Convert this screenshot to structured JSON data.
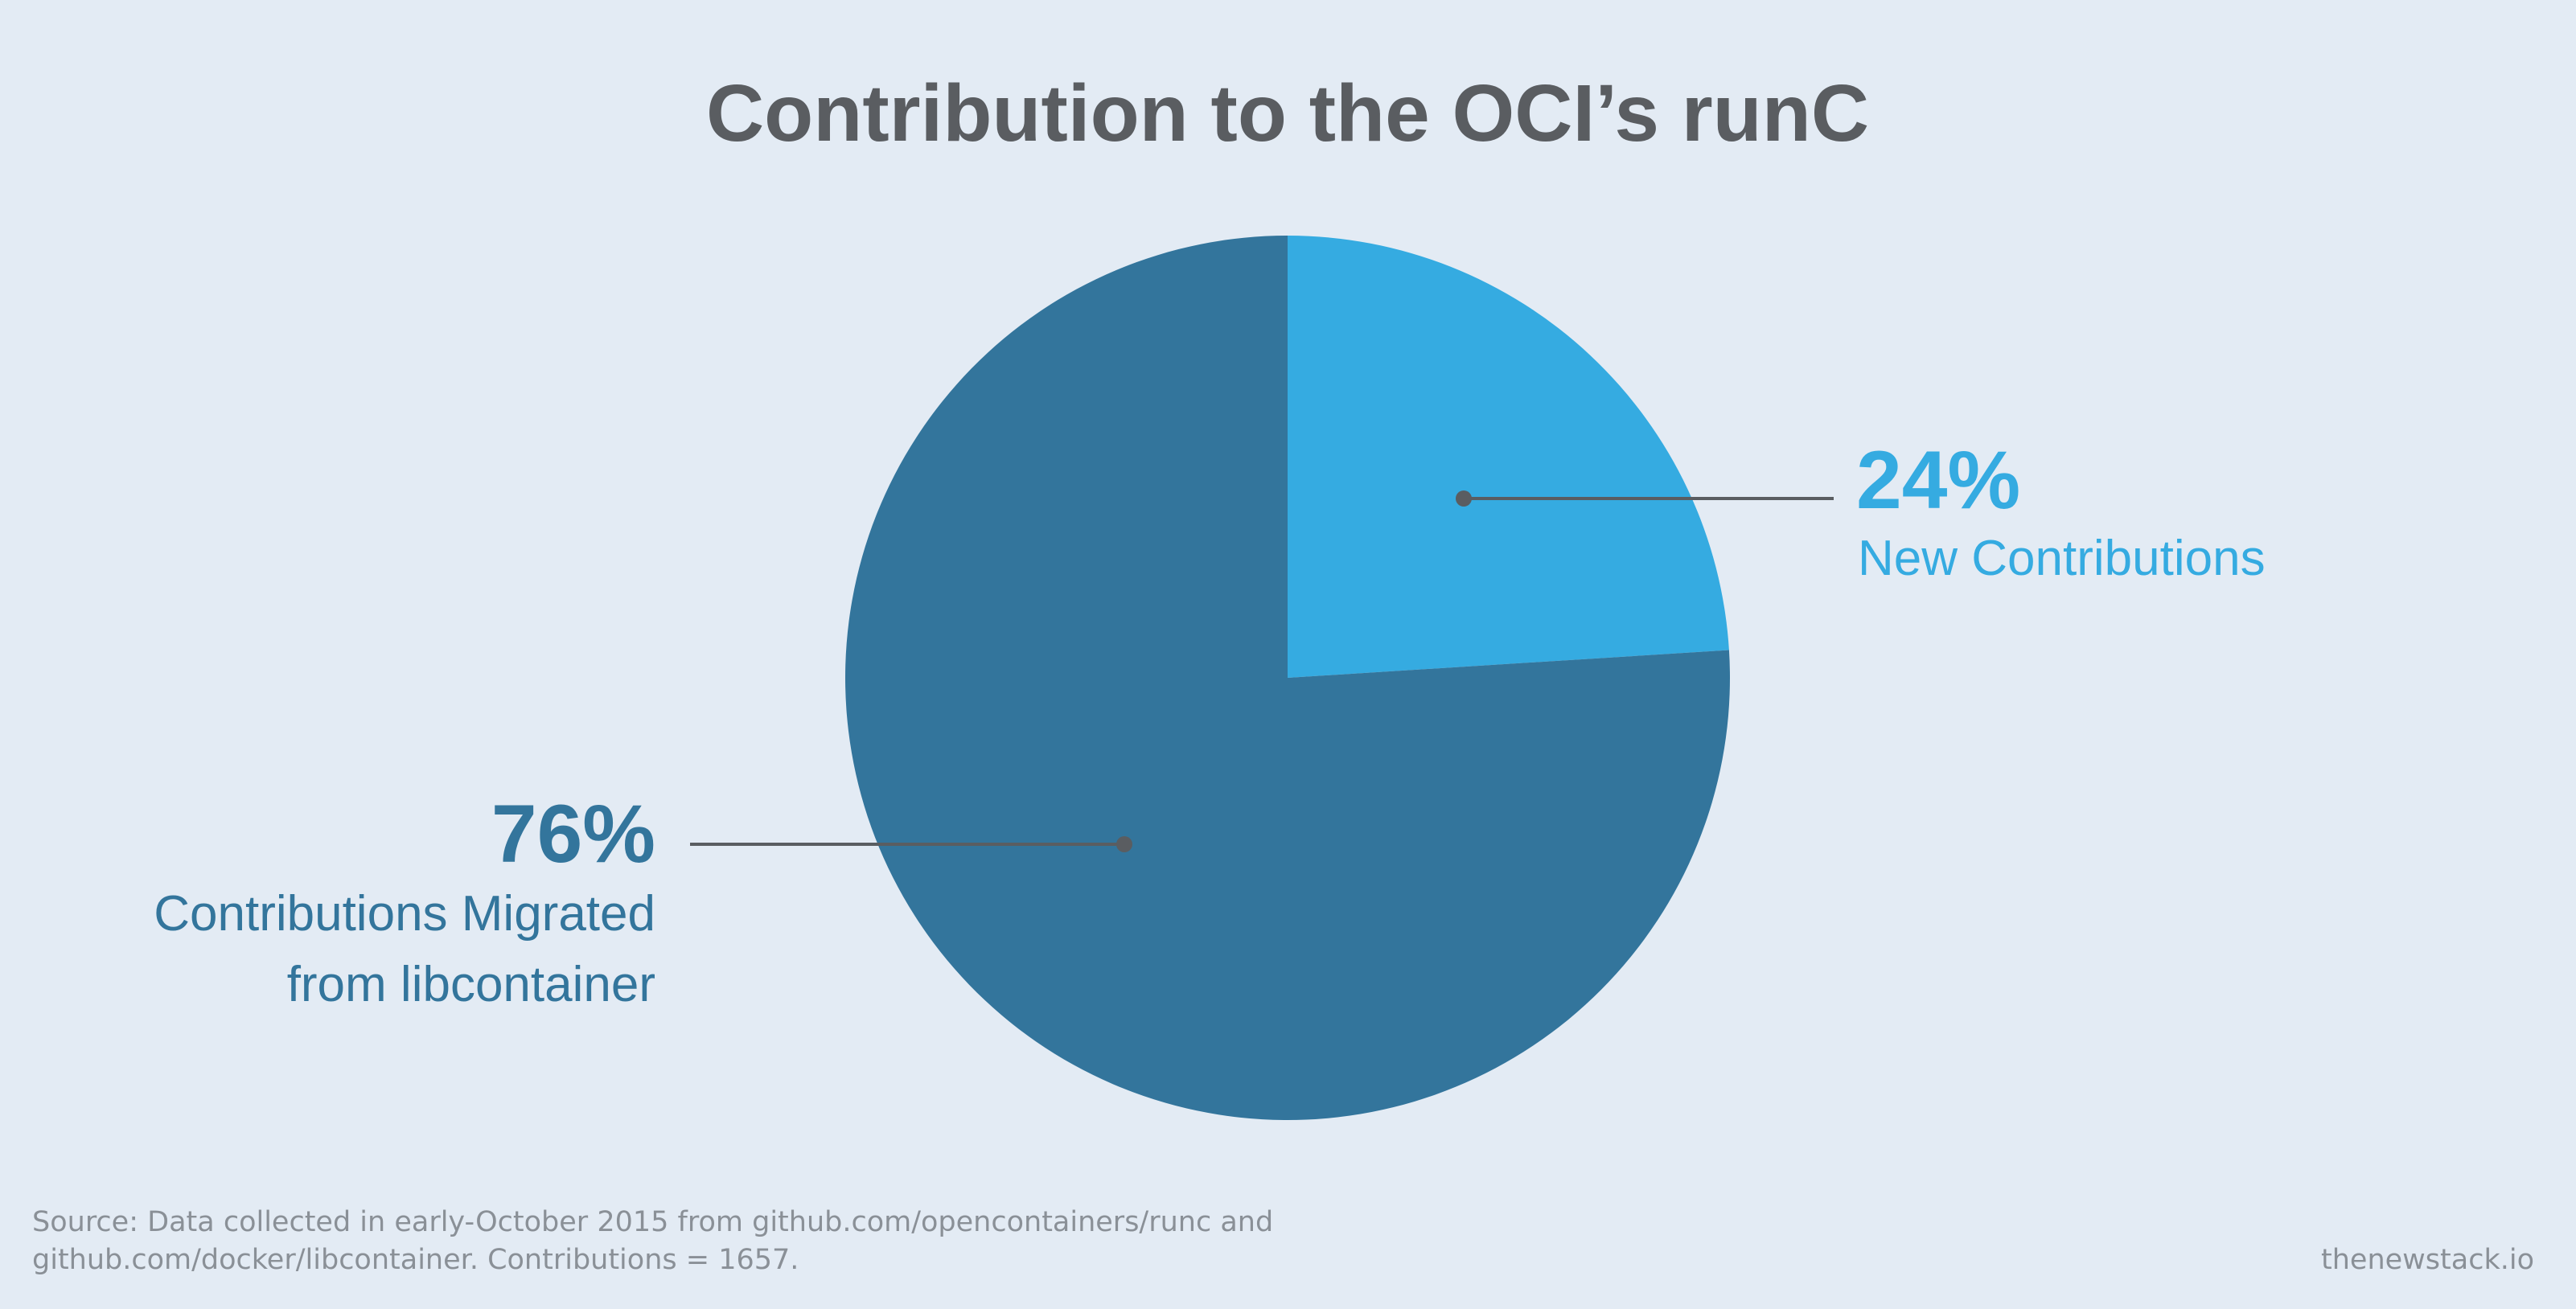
{
  "chart_data": {
    "type": "pie",
    "title": "Contribution to the OCI’s runC",
    "slices": [
      {
        "name": "New Contributions",
        "value": 24,
        "value_label": "24%",
        "color": "#35abe1",
        "label_lines": [
          "New Contributions"
        ]
      },
      {
        "name": "Contributions Migrated from libcontainer",
        "value": 76,
        "value_label": "76%",
        "color": "#33759c",
        "label_lines": [
          "Contributions Migrated",
          "from libcontainer"
        ]
      }
    ],
    "start_angle": "12 o'clock",
    "direction": "clockwise"
  },
  "source_lines": [
    "Source: Data collected in early-October 2015 from github.com/opencontainers/runc and",
    "github.com/docker/libcontainer. Contributions = 1657."
  ],
  "credit": "thenewstack.io",
  "colors": {
    "background": "#e3ebf4",
    "title": "#5a5d61",
    "leader": "#5a5d61",
    "footer": "#8a9097"
  }
}
